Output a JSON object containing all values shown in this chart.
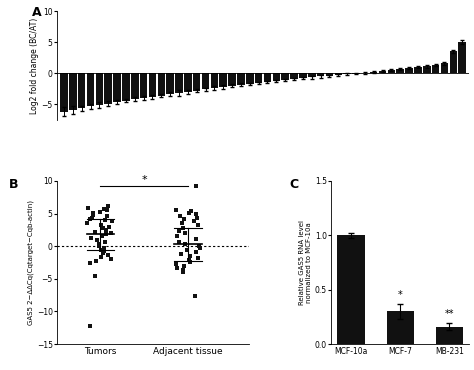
{
  "panel_A": {
    "ylabel": "Log2 fold change (BC/AT)",
    "ylim": [
      -7.5,
      10
    ],
    "yticks": [
      -5,
      0,
      5,
      10
    ],
    "bar_values": [
      -6.2,
      -5.9,
      -5.6,
      -5.3,
      -5.1,
      -4.9,
      -4.6,
      -4.4,
      -4.2,
      -4.0,
      -3.8,
      -3.6,
      -3.4,
      -3.2,
      -3.0,
      -2.8,
      -2.6,
      -2.4,
      -2.2,
      -2.0,
      -1.85,
      -1.7,
      -1.55,
      -1.4,
      -1.25,
      -1.1,
      -0.95,
      -0.8,
      -0.65,
      -0.5,
      -0.38,
      -0.26,
      -0.14,
      -0.05,
      0.1,
      0.22,
      0.35,
      0.5,
      0.65,
      0.8,
      0.95,
      1.1,
      1.3,
      1.6,
      3.5,
      5.0
    ],
    "bar_errors": [
      0.7,
      0.6,
      0.4,
      0.4,
      0.5,
      0.4,
      0.3,
      0.3,
      0.3,
      0.3,
      0.3,
      0.3,
      0.3,
      0.5,
      0.3,
      0.3,
      0.3,
      0.3,
      0.3,
      0.2,
      0.2,
      0.2,
      0.2,
      0.2,
      0.2,
      0.2,
      0.2,
      0.2,
      0.2,
      0.2,
      0.15,
      0.15,
      0.15,
      0.15,
      0.15,
      0.15,
      0.15,
      0.15,
      0.15,
      0.15,
      0.15,
      0.2,
      0.2,
      0.25,
      0.3,
      0.3
    ],
    "bar_color": "#111111",
    "label": "A"
  },
  "panel_B": {
    "ylabel": "GAS5 2−ΔΔCq(Cqtarget−Cqb-actin)",
    "ylim": [
      -15,
      10
    ],
    "yticks": [
      -15,
      -10,
      -5,
      0,
      5,
      10
    ],
    "group1_label": "Tumors",
    "group2_label": "Adjacent tissue",
    "group1_mean": 1.8,
    "group1_sd": 2.3,
    "group2_mean": 0.3,
    "group2_sd": 2.5,
    "group1_points": [
      6.1,
      5.9,
      5.7,
      5.5,
      5.3,
      5.1,
      4.8,
      4.6,
      4.4,
      4.2,
      4.0,
      3.8,
      3.5,
      3.3,
      3.0,
      2.8,
      2.5,
      2.2,
      2.0,
      1.8,
      1.5,
      1.2,
      1.0,
      0.7,
      0.4,
      0.1,
      -0.2,
      -0.5,
      -0.8,
      -1.1,
      -1.4,
      -1.7,
      -2.0,
      -2.3,
      -2.6,
      -4.6,
      -12.2
    ],
    "group2_points": [
      9.2,
      5.6,
      5.4,
      5.1,
      4.9,
      4.6,
      4.3,
      4.1,
      3.8,
      3.5,
      3.2,
      2.8,
      2.4,
      2.0,
      1.5,
      1.1,
      0.7,
      0.3,
      0.0,
      -0.3,
      -0.6,
      -0.9,
      -1.2,
      -1.5,
      -1.8,
      -2.1,
      -2.4,
      -2.7,
      -3.0,
      -3.3,
      -3.6,
      -3.9,
      -7.6
    ],
    "dot_color": "#111111",
    "sig_text": "*",
    "label": "B"
  },
  "panel_C": {
    "categories": [
      "MCF-10a",
      "MCF-7",
      "MB-231"
    ],
    "values": [
      1.0,
      0.3,
      0.16
    ],
    "errors": [
      0.02,
      0.07,
      0.03
    ],
    "bar_color": "#111111",
    "ylabel": "Relative GAS5 RNA level\nnormalized to MCF-10a",
    "ylim": [
      0,
      1.5
    ],
    "yticks": [
      0.0,
      0.5,
      1.0,
      1.5
    ],
    "sig_labels": [
      "",
      "*",
      "**"
    ],
    "label": "C"
  }
}
